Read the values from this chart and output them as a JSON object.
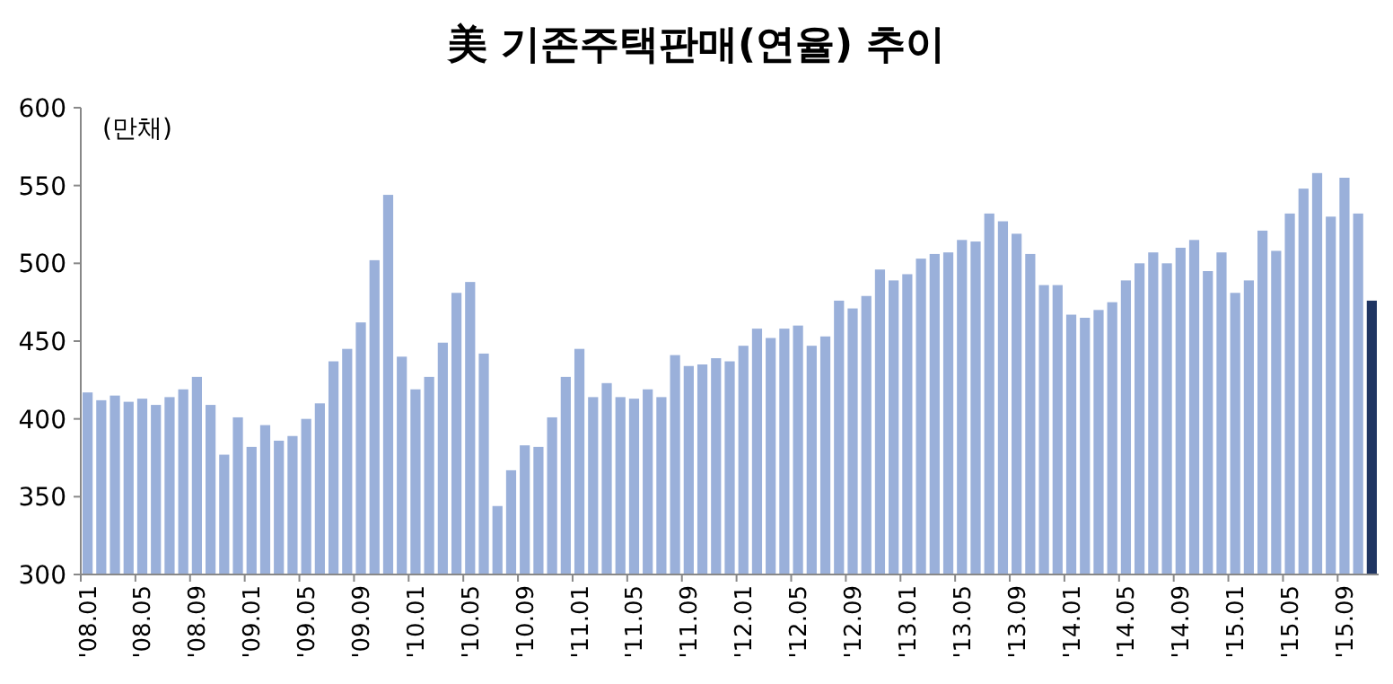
{
  "chart_data": {
    "type": "bar",
    "title": "美 기존주택판매(연율) 추이",
    "annotations": [
      "(만채)"
    ],
    "categories": [
      "'08.01",
      null,
      null,
      null,
      "'08.05",
      null,
      null,
      null,
      "'08.09",
      null,
      null,
      null,
      "'09.01",
      null,
      null,
      null,
      "'09.05",
      null,
      null,
      null,
      "'09.09",
      null,
      null,
      null,
      "'10.01",
      null,
      null,
      null,
      "'10.05",
      null,
      null,
      null,
      "'10.09",
      null,
      null,
      null,
      "'11.01",
      null,
      null,
      null,
      "'11.05",
      null,
      null,
      null,
      "'11.09",
      null,
      null,
      null,
      "'12.01",
      null,
      null,
      null,
      "'12.05",
      null,
      null,
      null,
      "'12.09",
      null,
      null,
      null,
      "'13.01",
      null,
      null,
      null,
      "'13.05",
      null,
      null,
      null,
      "'13.09",
      null,
      null,
      null,
      "'14.01",
      null,
      null,
      null,
      "'14.05",
      null,
      null,
      null,
      "'14.09",
      null,
      null,
      null,
      "'15.01",
      null,
      null,
      null,
      "'15.05",
      null,
      null,
      null,
      "'15.09",
      null,
      null
    ],
    "values": [
      417,
      412,
      415,
      411,
      413,
      409,
      414,
      419,
      427,
      409,
      377,
      401,
      382,
      396,
      386,
      389,
      400,
      410,
      437,
      445,
      462,
      502,
      544,
      440,
      419,
      427,
      449,
      481,
      488,
      442,
      344,
      367,
      383,
      382,
      401,
      427,
      445,
      414,
      423,
      414,
      413,
      419,
      414,
      441,
      434,
      435,
      439,
      437,
      447,
      458,
      452,
      458,
      460,
      447,
      453,
      476,
      471,
      479,
      496,
      489,
      493,
      503,
      506,
      507,
      515,
      514,
      532,
      527,
      519,
      506,
      486,
      486,
      467,
      465,
      470,
      475,
      489,
      500,
      507,
      500,
      510,
      515,
      495,
      507,
      481,
      489,
      521,
      508,
      532,
      548,
      558,
      530,
      555,
      532,
      476
    ],
    "colors": [
      "#9ab0da",
      "#9ab0da",
      "#9ab0da",
      "#9ab0da",
      "#9ab0da",
      "#9ab0da",
      "#9ab0da",
      "#9ab0da",
      "#9ab0da",
      "#9ab0da",
      "#9ab0da",
      "#9ab0da",
      "#9ab0da",
      "#9ab0da",
      "#9ab0da",
      "#9ab0da",
      "#9ab0da",
      "#9ab0da",
      "#9ab0da",
      "#9ab0da",
      "#9ab0da",
      "#9ab0da",
      "#9ab0da",
      "#9ab0da",
      "#9ab0da",
      "#9ab0da",
      "#9ab0da",
      "#9ab0da",
      "#9ab0da",
      "#9ab0da",
      "#9ab0da",
      "#9ab0da",
      "#9ab0da",
      "#9ab0da",
      "#9ab0da",
      "#9ab0da",
      "#9ab0da",
      "#9ab0da",
      "#9ab0da",
      "#9ab0da",
      "#9ab0da",
      "#9ab0da",
      "#9ab0da",
      "#9ab0da",
      "#9ab0da",
      "#9ab0da",
      "#9ab0da",
      "#9ab0da",
      "#9ab0da",
      "#9ab0da",
      "#9ab0da",
      "#9ab0da",
      "#9ab0da",
      "#9ab0da",
      "#9ab0da",
      "#9ab0da",
      "#9ab0da",
      "#9ab0da",
      "#9ab0da",
      "#9ab0da",
      "#9ab0da",
      "#9ab0da",
      "#9ab0da",
      "#9ab0da",
      "#9ab0da",
      "#9ab0da",
      "#9ab0da",
      "#9ab0da",
      "#9ab0da",
      "#9ab0da",
      "#9ab0da",
      "#9ab0da",
      "#9ab0da",
      "#9ab0da",
      "#9ab0da",
      "#9ab0da",
      "#9ab0da",
      "#9ab0da",
      "#9ab0da",
      "#9ab0da",
      "#9ab0da",
      "#9ab0da",
      "#9ab0da",
      "#9ab0da",
      "#9ab0da",
      "#9ab0da",
      "#9ab0da",
      "#9ab0da",
      "#9ab0da",
      "#9ab0da",
      "#9ab0da",
      "#9ab0da",
      "#9ab0da",
      "#9ab0da",
      "#1f3562"
    ],
    "ylim": [
      300,
      600
    ],
    "yticks": [
      300,
      350,
      400,
      450,
      500,
      550,
      600
    ],
    "grid": false
  }
}
